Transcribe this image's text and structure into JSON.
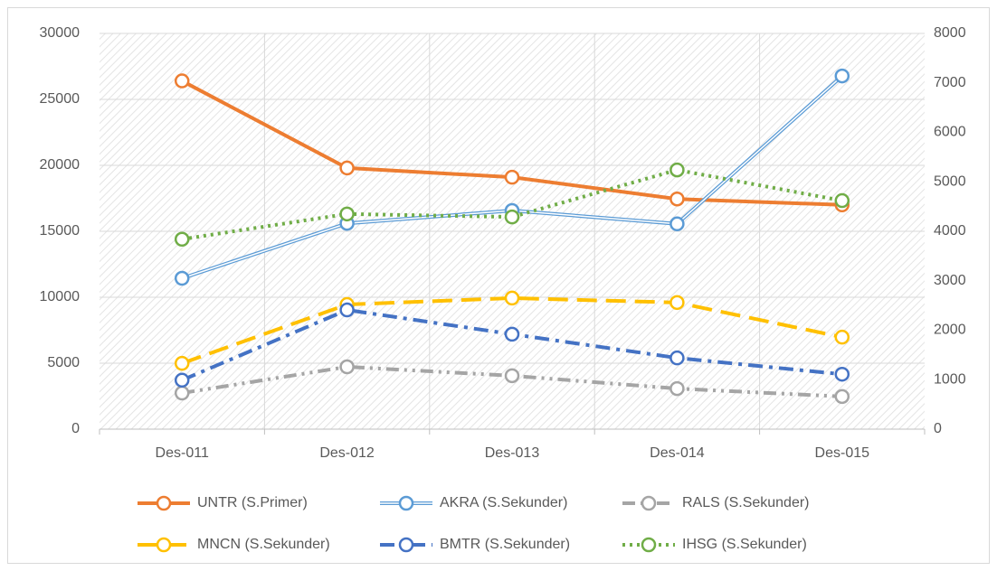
{
  "chart_data": {
    "type": "line",
    "categories": [
      "Des-011",
      "Des-012",
      "Des-013",
      "Des-014",
      "Des-015"
    ],
    "ylim": [
      0,
      30000
    ],
    "yticks": [
      0,
      5000,
      10000,
      15000,
      20000,
      25000,
      30000
    ],
    "y2lim": [
      0,
      8000
    ],
    "y2ticks": [
      0,
      1000,
      2000,
      3000,
      4000,
      5000,
      6000,
      7000,
      8000
    ],
    "grid": true,
    "legend": "bottom",
    "series": [
      {
        "name": "UNTR (S.Primer)",
        "color": "#ED7D31",
        "line_style": "solid",
        "values": [
          26400,
          19800,
          19100,
          17450,
          17000
        ]
      },
      {
        "name": "AKRA (S.Sekunder)",
        "color": "#5B9BD5",
        "line_style": "double",
        "axis": "y2",
        "values": [
          3050,
          4160,
          4420,
          4150,
          7140
        ]
      },
      {
        "name": "RALS (S.Sekunder)",
        "color": "#A5A5A5",
        "line_style": "dash-dot-dot",
        "axis": "y2",
        "values": [
          730,
          1260,
          1080,
          820,
          660
        ]
      },
      {
        "name": "MNCN (S.Sekunder)",
        "color": "#FFC000",
        "line_style": "long-dash",
        "axis": "y2",
        "values": [
          1330,
          2520,
          2650,
          2560,
          1860
        ]
      },
      {
        "name": "BMTR (S.Sekunder)",
        "color": "#4472C4",
        "line_style": "dash-dot",
        "axis": "y2",
        "values": [
          990,
          2410,
          1920,
          1440,
          1110
        ]
      },
      {
        "name": "IHSG (S.Sekunder)",
        "color": "#70AD47",
        "line_style": "dotted",
        "axis": "y2",
        "values": [
          3840,
          4350,
          4290,
          5240,
          4620
        ]
      }
    ]
  }
}
